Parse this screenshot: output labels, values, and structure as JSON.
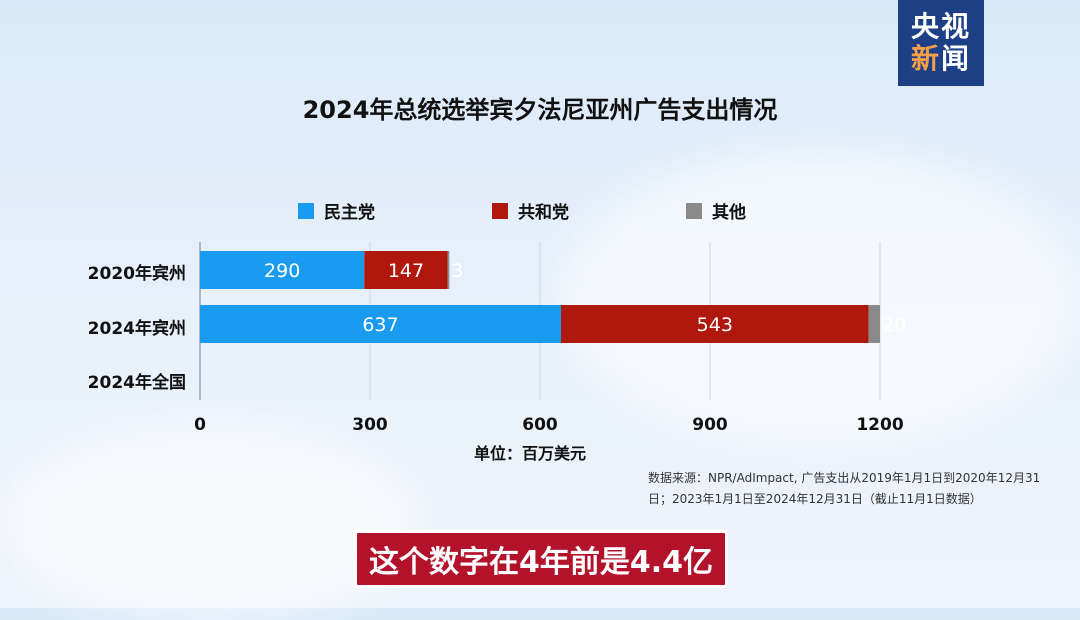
{
  "logo": {
    "line1": "央视",
    "line2a": "新",
    "line2b": "闻"
  },
  "subtitle": "这个数字在4年前是4.4亿",
  "chart_data": {
    "type": "bar",
    "orientation": "horizontal",
    "stacked": true,
    "title": "2024年总统选举宾夕法尼亚州广告支出情况",
    "categories": [
      "2020年宾州",
      "2024年宾州",
      "2024年全国"
    ],
    "series": [
      {
        "name": "民主党",
        "color": "#1a9bf0",
        "values": [
          290,
          637,
          null
        ]
      },
      {
        "name": "共和党",
        "color": "#b0180e",
        "values": [
          147,
          543,
          null
        ]
      },
      {
        "name": "其他",
        "color": "#8a8a8a",
        "values": [
          3,
          20,
          null
        ]
      }
    ],
    "xlim": [
      0,
      1200
    ],
    "xticks": [
      0,
      300,
      600,
      900,
      1200
    ],
    "xlabel": "单位：百万美元",
    "grid": true,
    "legend_position": "top",
    "source": "数据来源：NPR/AdImpact, 广告支出从2019年1月1日到2020年12月31日；2023年1月1日至2024年12月31日（截止11月1日数据）"
  }
}
